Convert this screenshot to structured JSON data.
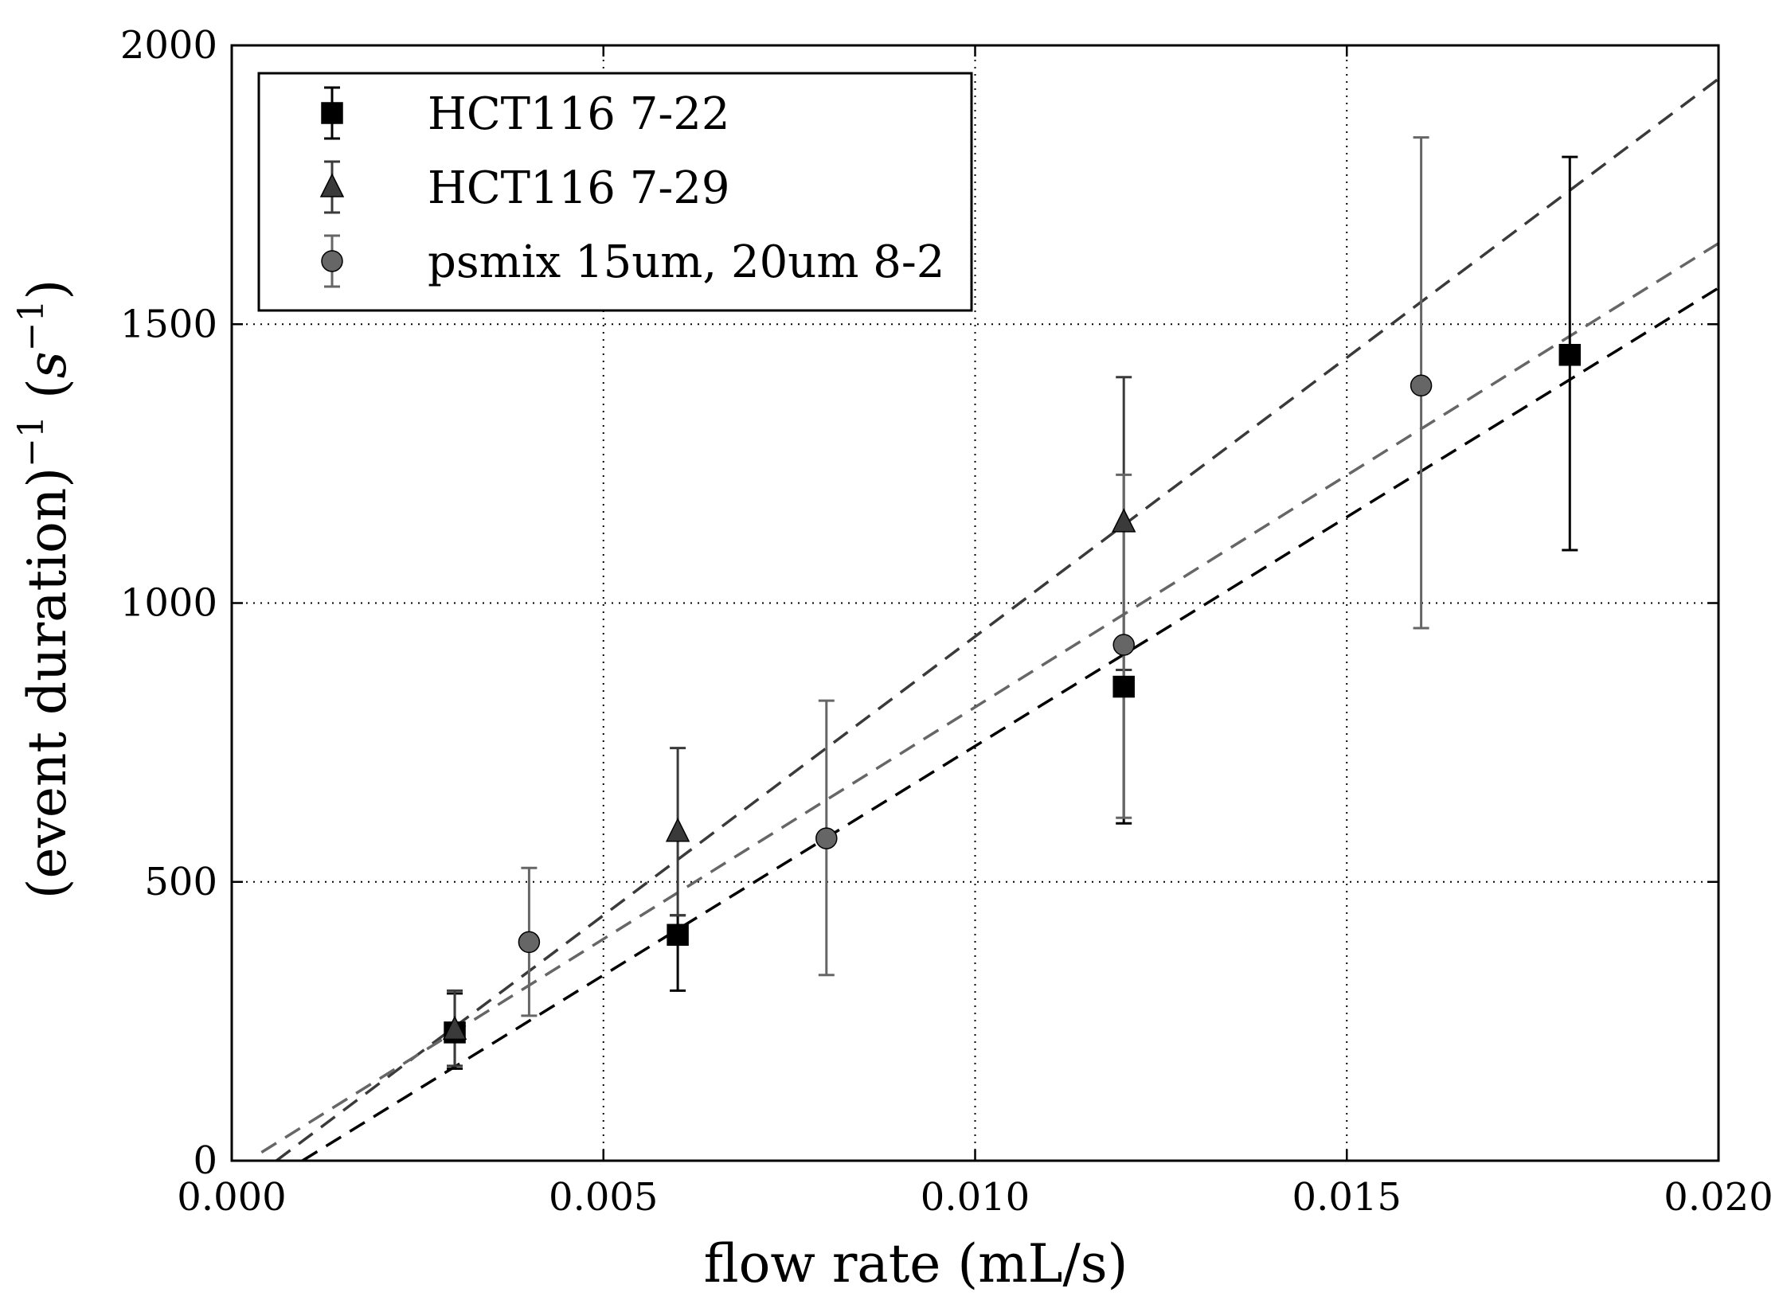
{
  "chart_data": {
    "type": "scatter",
    "title": "",
    "xlabel": "flow rate (mL/s)",
    "ylabel": "(event duration)",
    "ylabel_exponent": "−1",
    "ylabel_unit_open": "(",
    "ylabel_unit_var": "s",
    "ylabel_unit_exp": "−1",
    "ylabel_unit_close": ")",
    "xlim": [
      0.0,
      0.02
    ],
    "ylim": [
      0,
      2000
    ],
    "x_ticks": [
      0.0,
      0.005,
      0.01,
      0.015,
      0.02
    ],
    "x_tick_labels": [
      "0.000",
      "0.005",
      "0.010",
      "0.015",
      "0.020"
    ],
    "y_ticks": [
      0,
      500,
      1000,
      1500,
      2000
    ],
    "y_tick_labels": [
      "0",
      "500",
      "1000",
      "1500",
      "2000"
    ],
    "grid": true,
    "legend_position": "top-left",
    "series": [
      {
        "name": "HCT116 7-22",
        "marker": "square",
        "color": "#000000",
        "points": [
          {
            "x": 0.003,
            "y": 230,
            "err_low": 165,
            "err_high": 300
          },
          {
            "x": 0.006,
            "y": 405,
            "err_low": 305,
            "err_high": 440
          },
          {
            "x": 0.012,
            "y": 850,
            "err_low": 605,
            "err_high": 880
          },
          {
            "x": 0.018,
            "y": 1445,
            "err_low": 1095,
            "err_high": 1800
          }
        ],
        "fit": {
          "x": [
            0.00095,
            0.02
          ],
          "y": [
            0,
            1565
          ]
        }
      },
      {
        "name": "HCT116 7-29",
        "marker": "triangle",
        "color": "#3a3a3a",
        "points": [
          {
            "x": 0.003,
            "y": 235,
            "err_low": 170,
            "err_high": 305
          },
          {
            "x": 0.006,
            "y": 590,
            "err_low": 440,
            "err_high": 740
          },
          {
            "x": 0.012,
            "y": 1145,
            "err_low": 880,
            "err_high": 1405
          }
        ],
        "fit": {
          "x": [
            0.0006,
            0.02
          ],
          "y": [
            0,
            1940
          ]
        }
      },
      {
        "name": "psmix 15um, 20um 8-2",
        "marker": "circle",
        "color": "#666666",
        "points": [
          {
            "x": 0.004,
            "y": 392,
            "err_low": 260,
            "err_high": 525
          },
          {
            "x": 0.008,
            "y": 578,
            "err_low": 333,
            "err_high": 825
          },
          {
            "x": 0.012,
            "y": 925,
            "err_low": 615,
            "err_high": 1230
          },
          {
            "x": 0.016,
            "y": 1390,
            "err_low": 955,
            "err_high": 1835
          }
        ],
        "fit": {
          "x": [
            0.0004,
            0.02
          ],
          "y": [
            15,
            1645
          ]
        }
      }
    ]
  }
}
